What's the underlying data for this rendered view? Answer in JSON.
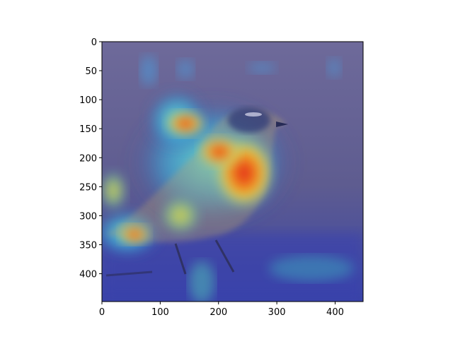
{
  "figure": {
    "background": "#ffffff",
    "image_description_colors": {
      "backdrop_purple": "#5a5a8c",
      "ground_blue": "#3c46a0",
      "heat_red": "#e02020",
      "heat_yellow": "#e8d23a",
      "heat_cyan": "#4ed2d2",
      "bird_blue_head": "#2e3a78"
    }
  },
  "axes": {
    "x": {
      "range": [
        0,
        448
      ],
      "ticks": [
        "0",
        "100",
        "200",
        "300",
        "400"
      ],
      "tick_values": [
        0,
        100,
        200,
        300,
        400
      ]
    },
    "y": {
      "range": [
        0,
        448
      ],
      "inverted": true,
      "ticks": [
        "0",
        "50",
        "100",
        "150",
        "200",
        "250",
        "300",
        "350",
        "400"
      ],
      "tick_values": [
        0,
        50,
        100,
        150,
        200,
        250,
        300,
        350,
        400
      ]
    }
  }
}
